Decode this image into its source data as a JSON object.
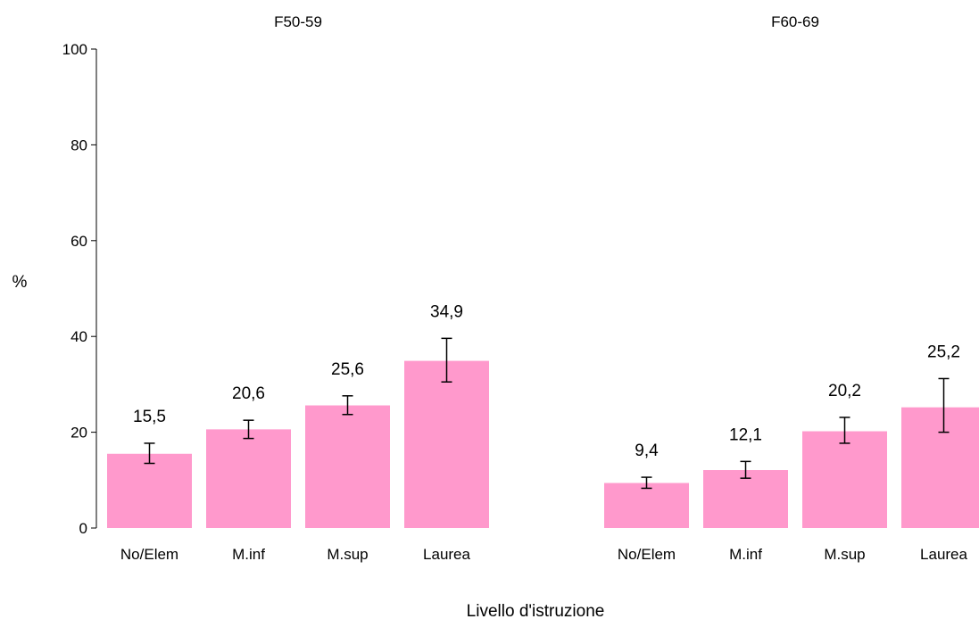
{
  "chart_data": {
    "type": "bar",
    "ylabel": "%",
    "xlabel": "Livello d'istruzione",
    "ylim": [
      0,
      100
    ],
    "yticks": [
      0,
      20,
      40,
      60,
      80,
      100
    ],
    "grid": false,
    "bar_color": "#ff99cc",
    "error_bar_color": "#000000",
    "groups": [
      {
        "title": "F50-59",
        "categories": [
          "No/Elem",
          "M.inf",
          "M.sup",
          "Laurea"
        ],
        "values": [
          15.5,
          20.6,
          25.6,
          34.9
        ],
        "value_labels": [
          "15,5",
          "20,6",
          "25,6",
          "34,9"
        ],
        "ci_low": [
          13.5,
          18.7,
          23.7,
          30.5
        ],
        "ci_high": [
          17.7,
          22.5,
          27.6,
          39.6
        ]
      },
      {
        "title": "F60-69",
        "categories": [
          "No/Elem",
          "M.inf",
          "M.sup",
          "Laurea"
        ],
        "values": [
          9.4,
          12.1,
          20.2,
          25.2
        ],
        "value_labels": [
          "9,4",
          "12,1",
          "20,2",
          "25,2"
        ],
        "ci_low": [
          8.3,
          10.4,
          17.7,
          20.0
        ],
        "ci_high": [
          10.6,
          13.9,
          23.1,
          31.2
        ]
      }
    ]
  }
}
